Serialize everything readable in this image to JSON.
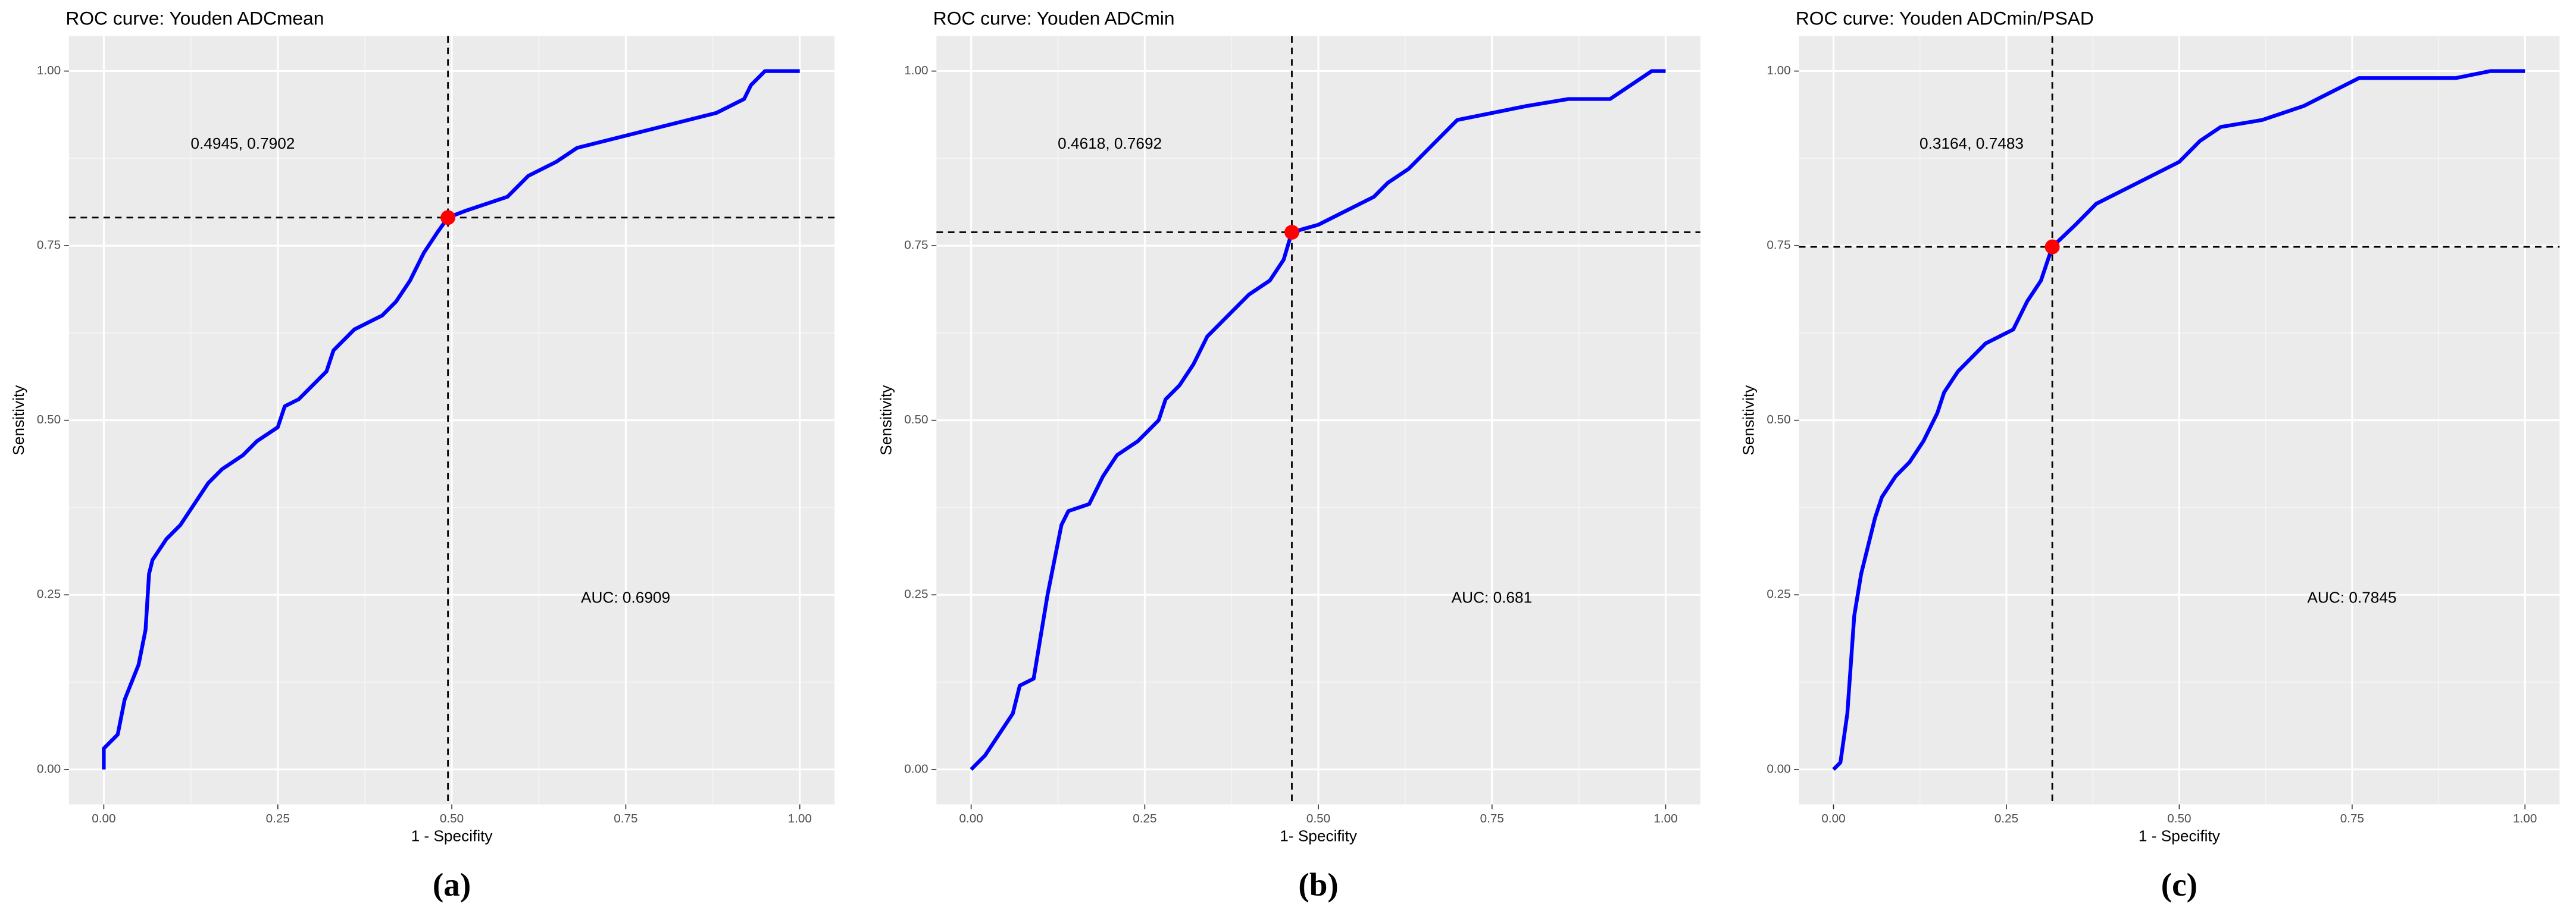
{
  "chart_data": [
    {
      "type": "line",
      "title": "ROC curve: Youden ADCmean",
      "x_label": "1 - Specifity",
      "y_label": "Sensitivity",
      "caption": "(a)",
      "x": [
        0,
        0,
        0.02,
        0.03,
        0.05,
        0.06,
        0.065,
        0.07,
        0.09,
        0.11,
        0.13,
        0.15,
        0.17,
        0.2,
        0.22,
        0.25,
        0.26,
        0.28,
        0.3,
        0.32,
        0.33,
        0.36,
        0.4,
        0.42,
        0.44,
        0.46,
        0.48,
        0.4945,
        0.52,
        0.55,
        0.58,
        0.61,
        0.65,
        0.68,
        0.72,
        0.76,
        0.8,
        0.84,
        0.88,
        0.92,
        0.93,
        0.95,
        1
      ],
      "values": [
        0,
        0.03,
        0.05,
        0.1,
        0.15,
        0.2,
        0.28,
        0.3,
        0.33,
        0.35,
        0.38,
        0.41,
        0.43,
        0.45,
        0.47,
        0.49,
        0.52,
        0.53,
        0.55,
        0.57,
        0.6,
        0.63,
        0.65,
        0.67,
        0.7,
        0.74,
        0.77,
        0.7902,
        0.8,
        0.81,
        0.82,
        0.85,
        0.87,
        0.89,
        0.9,
        0.91,
        0.92,
        0.93,
        0.94,
        0.96,
        0.98,
        1,
        1
      ],
      "color": "#0000ff",
      "point_color": "#ff0000",
      "cutoff": [
        0.4945,
        0.7902
      ],
      "point_label": "0.4945, 0.7902",
      "auc_label": "AUC: 0.6909",
      "xlim": [
        -0.05,
        1.05
      ],
      "ylim": [
        -0.05,
        1.05
      ],
      "xticks": [
        {
          "value": 0,
          "label": "0.00"
        },
        {
          "value": 0.25,
          "label": "0.25"
        },
        {
          "value": 0.5,
          "label": "0.50"
        },
        {
          "value": 0.75,
          "label": "0.75"
        },
        {
          "value": 1,
          "label": "1.00"
        }
      ],
      "yticks": [
        {
          "value": 0,
          "label": "0.00"
        },
        {
          "value": 0.25,
          "label": "0.25"
        },
        {
          "value": 0.5,
          "label": "0.50"
        },
        {
          "value": 0.75,
          "label": "0.75"
        },
        {
          "value": 1,
          "label": "1.00"
        }
      ],
      "grid": true
    },
    {
      "type": "line",
      "title": "ROC curve: Youden ADCmin",
      "x_label": "1- Specifity",
      "y_label": "Sensitivity",
      "caption": "(b)",
      "x": [
        0,
        0.02,
        0.04,
        0.06,
        0.07,
        0.09,
        0.1,
        0.11,
        0.12,
        0.13,
        0.14,
        0.17,
        0.19,
        0.21,
        0.24,
        0.27,
        0.28,
        0.3,
        0.32,
        0.34,
        0.37,
        0.4,
        0.43,
        0.45,
        0.4618,
        0.5,
        0.54,
        0.58,
        0.6,
        0.63,
        0.66,
        0.7,
        0.75,
        0.8,
        0.86,
        0.92,
        0.95,
        0.98,
        1
      ],
      "values": [
        0,
        0.02,
        0.05,
        0.08,
        0.12,
        0.13,
        0.19,
        0.25,
        0.3,
        0.35,
        0.37,
        0.38,
        0.42,
        0.45,
        0.47,
        0.5,
        0.53,
        0.55,
        0.58,
        0.62,
        0.65,
        0.68,
        0.7,
        0.73,
        0.7692,
        0.78,
        0.8,
        0.82,
        0.84,
        0.86,
        0.89,
        0.93,
        0.94,
        0.95,
        0.96,
        0.96,
        0.98,
        1,
        1
      ],
      "color": "#0000ff",
      "point_color": "#ff0000",
      "cutoff": [
        0.4618,
        0.7692
      ],
      "point_label": "0.4618, 0.7692",
      "auc_label": "AUC: 0.681",
      "xlim": [
        -0.05,
        1.05
      ],
      "ylim": [
        -0.05,
        1.05
      ],
      "xticks": [
        {
          "value": 0,
          "label": "0.00"
        },
        {
          "value": 0.25,
          "label": "0.25"
        },
        {
          "value": 0.5,
          "label": "0.50"
        },
        {
          "value": 0.75,
          "label": "0.75"
        },
        {
          "value": 1,
          "label": "1.00"
        }
      ],
      "yticks": [
        {
          "value": 0,
          "label": "0.00"
        },
        {
          "value": 0.25,
          "label": "0.25"
        },
        {
          "value": 0.5,
          "label": "0.50"
        },
        {
          "value": 0.75,
          "label": "0.75"
        },
        {
          "value": 1,
          "label": "1.00"
        }
      ],
      "grid": true
    },
    {
      "type": "line",
      "title": "ROC curve: Youden ADCmin/PSAD",
      "x_label": "1 - Specifity",
      "y_label": "Sensitivity",
      "caption": "(c)",
      "x": [
        0,
        0.01,
        0.02,
        0.025,
        0.03,
        0.04,
        0.05,
        0.06,
        0.07,
        0.09,
        0.11,
        0.13,
        0.15,
        0.16,
        0.18,
        0.2,
        0.22,
        0.26,
        0.28,
        0.3,
        0.3164,
        0.35,
        0.38,
        0.42,
        0.46,
        0.5,
        0.53,
        0.56,
        0.62,
        0.68,
        0.72,
        0.76,
        0.9,
        0.95,
        1
      ],
      "values": [
        0,
        0.01,
        0.08,
        0.15,
        0.22,
        0.28,
        0.32,
        0.36,
        0.39,
        0.42,
        0.44,
        0.47,
        0.51,
        0.54,
        0.57,
        0.59,
        0.61,
        0.63,
        0.67,
        0.7,
        0.7483,
        0.78,
        0.81,
        0.83,
        0.85,
        0.87,
        0.9,
        0.92,
        0.93,
        0.95,
        0.97,
        0.99,
        0.99,
        1,
        1
      ],
      "color": "#0000ff",
      "point_color": "#ff0000",
      "cutoff": [
        0.3164,
        0.7483
      ],
      "point_label": "0.3164, 0.7483",
      "auc_label": "AUC: 0.7845",
      "xlim": [
        -0.05,
        1.05
      ],
      "ylim": [
        -0.05,
        1.05
      ],
      "xticks": [
        {
          "value": 0,
          "label": "0.00"
        },
        {
          "value": 0.25,
          "label": "0.25"
        },
        {
          "value": 0.5,
          "label": "0.50"
        },
        {
          "value": 0.75,
          "label": "0.75"
        },
        {
          "value": 1,
          "label": "1.00"
        }
      ],
      "yticks": [
        {
          "value": 0,
          "label": "0.00"
        },
        {
          "value": 0.25,
          "label": "0.25"
        },
        {
          "value": 0.5,
          "label": "0.50"
        },
        {
          "value": 0.75,
          "label": "0.75"
        },
        {
          "value": 1,
          "label": "1.00"
        }
      ],
      "grid": true
    }
  ]
}
